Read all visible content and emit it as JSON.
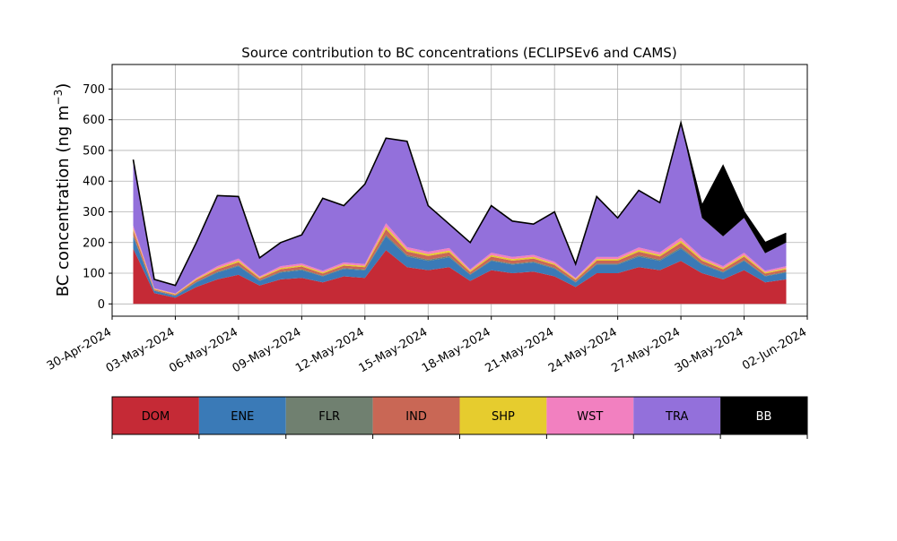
{
  "chart_data": {
    "type": "area",
    "stacked": true,
    "title": "Source contribution to BC concentrations (ECLIPSEv6 and CAMS)",
    "ylabel": "BC concentration (ng m",
    "ylabel_exponent": "−3",
    "ylabel_close": ")",
    "ylim": [
      -40,
      780
    ],
    "xlim": [
      "2024-04-30",
      "2024-06-02"
    ],
    "grid": true,
    "yticks": [
      0,
      100,
      200,
      300,
      400,
      500,
      600,
      700
    ],
    "xticks": [
      "30-Apr-2024",
      "03-May-2024",
      "06-May-2024",
      "09-May-2024",
      "12-May-2024",
      "15-May-2024",
      "18-May-2024",
      "21-May-2024",
      "24-May-2024",
      "27-May-2024",
      "30-May-2024",
      "02-Jun-2024"
    ],
    "total_outline_color": "#000000",
    "dates": [
      "2024-05-01",
      "2024-05-02",
      "2024-05-03",
      "2024-05-04",
      "2024-05-05",
      "2024-05-06",
      "2024-05-07",
      "2024-05-08",
      "2024-05-09",
      "2024-05-10",
      "2024-05-11",
      "2024-05-12",
      "2024-05-13",
      "2024-05-14",
      "2024-05-15",
      "2024-05-16",
      "2024-05-17",
      "2024-05-18",
      "2024-05-19",
      "2024-05-20",
      "2024-05-21",
      "2024-05-22",
      "2024-05-23",
      "2024-05-24",
      "2024-05-25",
      "2024-05-26",
      "2024-05-27",
      "2024-05-28",
      "2024-05-29",
      "2024-05-30",
      "2024-05-31",
      "2024-06-01"
    ],
    "series": [
      {
        "name": "DOM",
        "color": "#c52a36",
        "values": [
          180,
          35,
          20,
          55,
          80,
          95,
          60,
          80,
          85,
          70,
          90,
          85,
          175,
          120,
          110,
          120,
          75,
          110,
          100,
          105,
          90,
          55,
          100,
          100,
          120,
          110,
          140,
          100,
          80,
          110,
          70,
          80
        ]
      },
      {
        "name": "ENE",
        "color": "#3a7ab7",
        "values": [
          40,
          8,
          6,
          15,
          22,
          28,
          15,
          22,
          25,
          20,
          24,
          24,
          45,
          35,
          30,
          32,
          20,
          30,
          28,
          30,
          25,
          15,
          28,
          28,
          34,
          30,
          40,
          28,
          22,
          30,
          20,
          22
        ]
      },
      {
        "name": "FLR",
        "color": "#708070",
        "values": [
          4,
          1,
          1,
          2,
          3,
          3,
          2,
          3,
          3,
          2,
          3,
          3,
          5,
          4,
          4,
          4,
          2,
          3,
          3,
          3,
          3,
          2,
          3,
          3,
          4,
          4,
          5,
          3,
          3,
          3,
          2,
          3
        ]
      },
      {
        "name": "IND",
        "color": "#c96755",
        "values": [
          15,
          3,
          3,
          6,
          8,
          10,
          6,
          8,
          9,
          7,
          8,
          8,
          18,
          12,
          12,
          12,
          7,
          11,
          10,
          10,
          9,
          6,
          10,
          10,
          12,
          11,
          14,
          10,
          8,
          11,
          7,
          8
        ]
      },
      {
        "name": "SHP",
        "color": "#e6cc2e",
        "values": [
          6,
          2,
          2,
          3,
          4,
          5,
          3,
          4,
          4,
          4,
          4,
          4,
          8,
          6,
          6,
          6,
          4,
          5,
          5,
          5,
          4,
          3,
          5,
          5,
          6,
          5,
          7,
          5,
          4,
          5,
          4,
          4
        ]
      },
      {
        "name": "WST",
        "color": "#f280c0",
        "values": [
          10,
          2,
          2,
          4,
          6,
          7,
          4,
          6,
          6,
          5,
          6,
          6,
          12,
          8,
          8,
          8,
          5,
          8,
          7,
          7,
          6,
          4,
          7,
          7,
          8,
          8,
          10,
          7,
          6,
          8,
          5,
          6
        ]
      },
      {
        "name": "TRA",
        "color": "#9370db",
        "values": [
          215,
          29,
          26,
          115,
          230,
          202,
          60,
          77,
          93,
          236,
          185,
          260,
          277,
          345,
          150,
          78,
          87,
          153,
          117,
          100,
          163,
          45,
          197,
          127,
          186,
          162,
          374,
          127,
          97,
          113,
          57,
          77
        ]
      },
      {
        "name": "BB",
        "color": "#000000",
        "values": [
          0,
          0,
          0,
          0,
          0,
          0,
          0,
          0,
          0,
          0,
          0,
          0,
          0,
          0,
          0,
          0,
          0,
          0,
          0,
          0,
          0,
          0,
          0,
          0,
          0,
          0,
          0,
          40,
          230,
          20,
          35,
          30
        ]
      }
    ]
  }
}
